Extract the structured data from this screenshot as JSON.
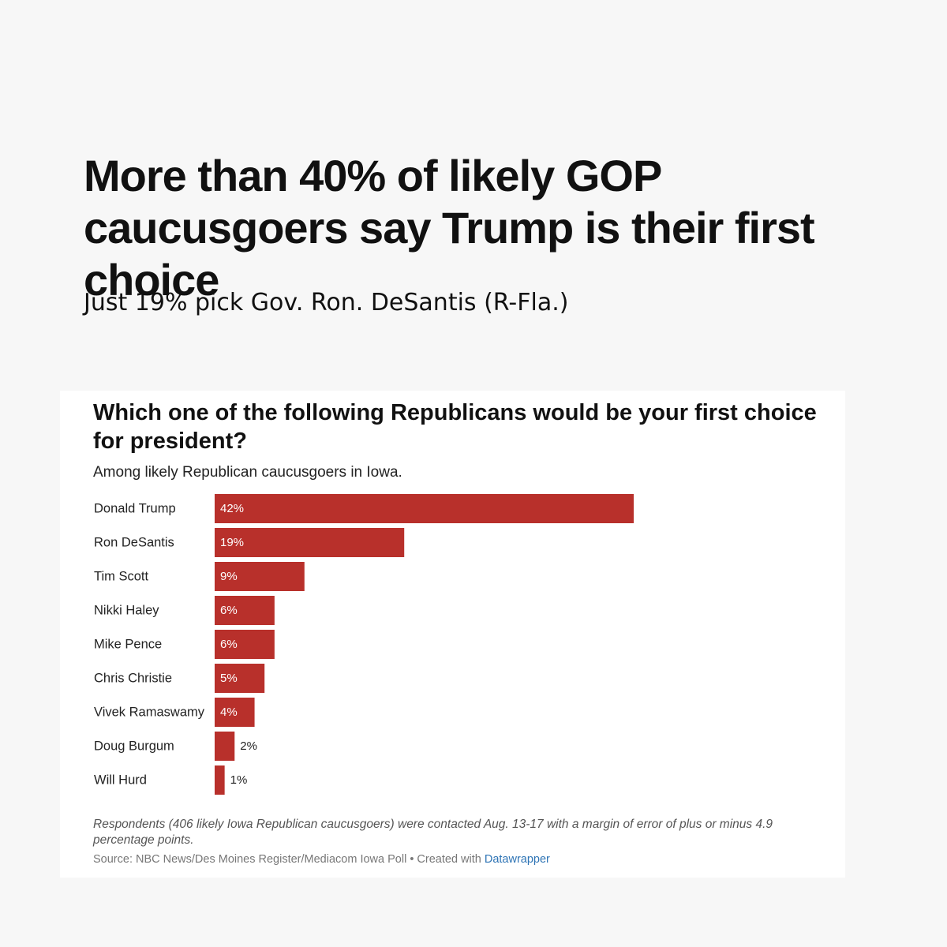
{
  "headline": "More than 40% of likely GOP caucusgoers say Trump is their first choice",
  "subhead": "Just 19% pick Gov. Ron. DeSantis (R-Fla.)",
  "colors": {
    "page_background": "#f7f7f7",
    "card_background": "#ffffff",
    "bar": "#b8302b",
    "link": "#2e74b5"
  },
  "chart_data": {
    "type": "bar",
    "orientation": "horizontal",
    "title": "Which one of the following Republicans would be your first choice for president?",
    "subtitle": "Among likely Republican caucusgoers in Iowa.",
    "categories": [
      "Donald Trump",
      "Ron DeSantis",
      "Tim Scott",
      "Nikki Haley",
      "Mike Pence",
      "Chris Christie",
      "Vivek Ramaswamy",
      "Doug Burgum",
      "Will Hurd"
    ],
    "values": [
      42,
      19,
      9,
      6,
      6,
      5,
      4,
      2,
      1
    ],
    "value_labels": [
      "42%",
      "19%",
      "9%",
      "6%",
      "6%",
      "5%",
      "4%",
      "2%",
      "1%"
    ],
    "unit": "%",
    "xlim": [
      0,
      42
    ],
    "xlabel": "",
    "ylabel": "",
    "grid": false,
    "legend": "none"
  },
  "notes": "Respondents (406 likely Iowa Republican caucusgoers) were contacted Aug. 13-17 with a margin of error of plus or minus 4.9 percentage points.",
  "source": {
    "text": "Source: NBC News/Des Moines Register/Mediacom Iowa Poll • Created with ",
    "link_text": "Datawrapper"
  }
}
